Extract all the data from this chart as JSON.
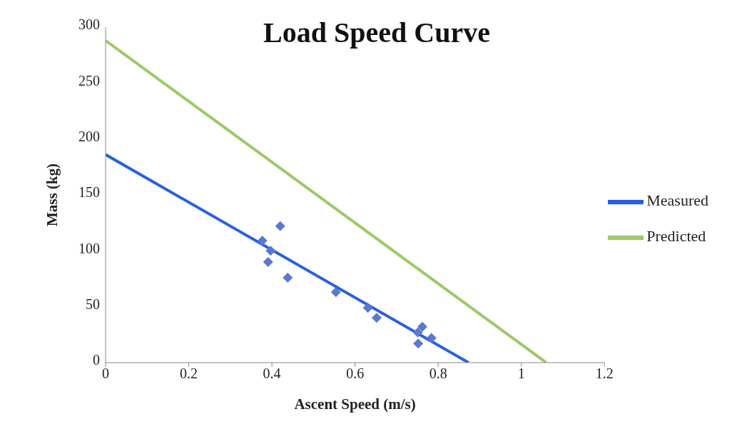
{
  "chart_data": {
    "type": "line",
    "title": "Load Speed Curve",
    "xlabel": "Ascent Speed (m/s)",
    "ylabel": "Mass (kg)",
    "xlim": [
      0,
      1.2
    ],
    "xticks": [
      0,
      0.2,
      0.4,
      0.6,
      0.8,
      1,
      1.2
    ],
    "ylim": [
      0,
      300
    ],
    "yticks": [
      0,
      50,
      100,
      150,
      200,
      250,
      300
    ],
    "grid": false,
    "legend": "right",
    "line_style": "solid",
    "series": [
      {
        "name": "Measured",
        "type": "line",
        "color": "#2a5fdc",
        "marker": "none",
        "x": [
          0,
          0.873
        ],
        "values": [
          186,
          0
        ]
      },
      {
        "name": "Predicted",
        "type": "line",
        "color": "#9dc96a",
        "marker": "none",
        "x": [
          0,
          1.06
        ],
        "values": [
          288,
          0
        ]
      },
      {
        "type": "scatter",
        "color": "#5a78cc",
        "marker": "diamond",
        "x": [
          0.377,
          0.42,
          0.397,
          0.391,
          0.438,
          0.554,
          0.631,
          0.652,
          0.751,
          0.762,
          0.752,
          0.784
        ],
        "values": [
          109,
          122,
          100,
          90,
          76,
          63,
          49,
          40,
          27,
          32,
          17,
          22
        ]
      }
    ]
  }
}
